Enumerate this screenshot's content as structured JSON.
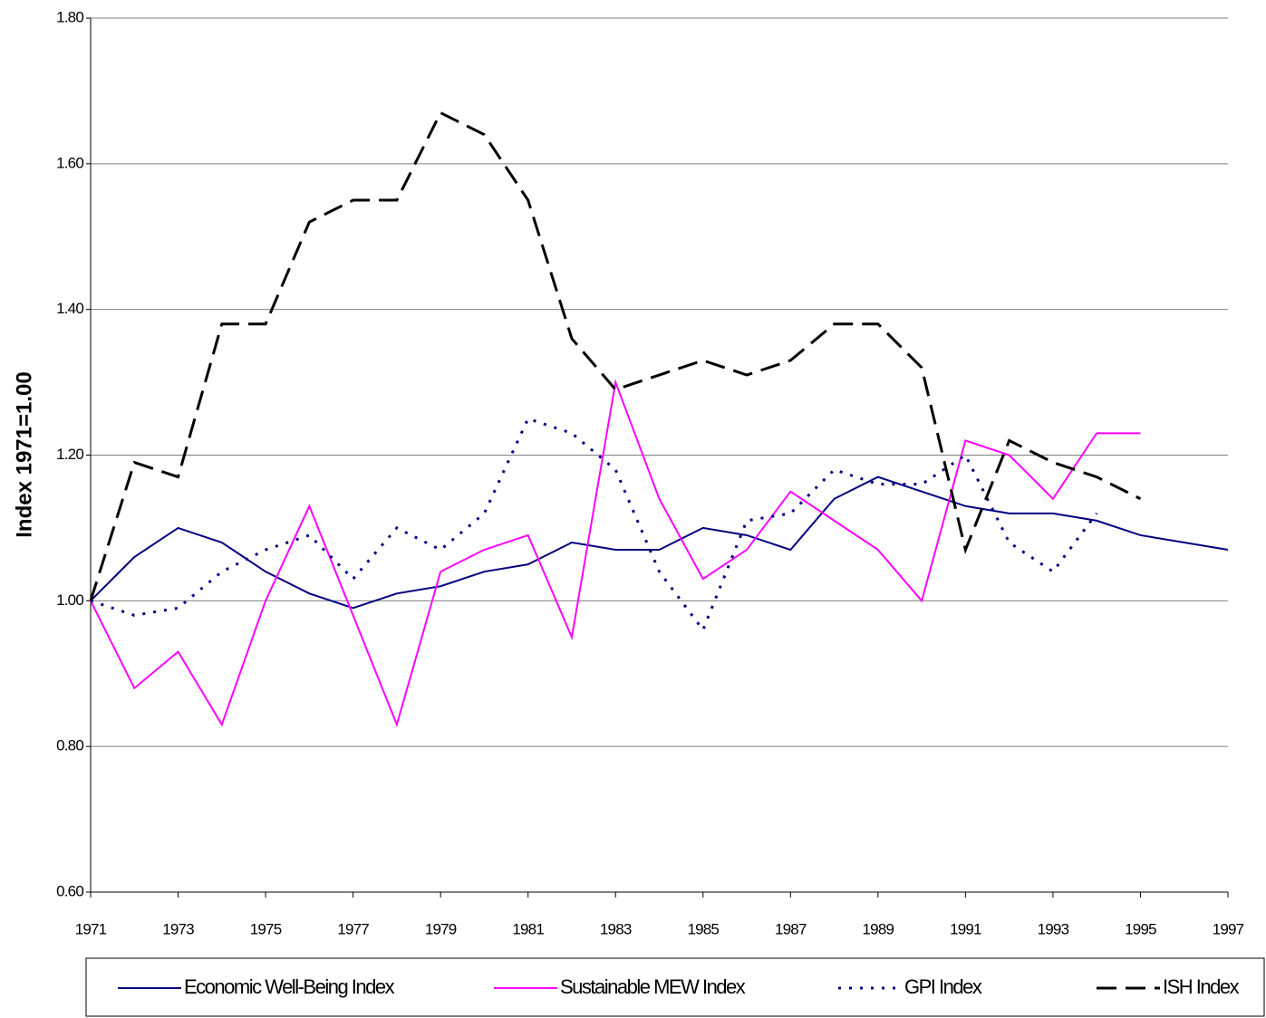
{
  "chart_data": {
    "type": "line",
    "y_label": "Index 1971=1.00",
    "x": [
      1971,
      1972,
      1973,
      1974,
      1975,
      1976,
      1977,
      1978,
      1979,
      1980,
      1981,
      1982,
      1983,
      1984,
      1985,
      1986,
      1987,
      1988,
      1989,
      1990,
      1991,
      1992,
      1993,
      1994,
      1995,
      1996,
      1997
    ],
    "xlim": [
      1971,
      1997
    ],
    "xticks": [
      1971,
      1973,
      1975,
      1977,
      1979,
      1981,
      1983,
      1985,
      1987,
      1989,
      1991,
      1993,
      1995,
      1997
    ],
    "ylim": [
      0.6,
      1.8
    ],
    "yticks": [
      {
        "value": 0.6,
        "label": "0.60"
      },
      {
        "value": 0.8,
        "label": "0.80"
      },
      {
        "value": 1.0,
        "label": "1.00"
      },
      {
        "value": 1.2,
        "label": "1.20"
      },
      {
        "value": 1.4,
        "label": "1.40"
      },
      {
        "value": 1.6,
        "label": "1.60"
      },
      {
        "value": 1.8,
        "label": "1.80"
      }
    ],
    "grid": true,
    "legend": "bottom",
    "series": [
      {
        "name": "Economic Well-Being Index",
        "color": "#000080",
        "dash": "solid",
        "values": [
          1.0,
          1.06,
          1.1,
          1.08,
          1.04,
          1.01,
          0.99,
          1.01,
          1.02,
          1.04,
          1.05,
          1.08,
          1.07,
          1.07,
          1.1,
          1.09,
          1.07,
          1.14,
          1.17,
          1.15,
          1.13,
          1.12,
          1.12,
          1.11,
          1.09,
          1.08,
          1.07
        ]
      },
      {
        "name": "Sustainable MEW Index",
        "color": "#ff00ff",
        "dash": "solid",
        "values": [
          1.0,
          0.88,
          0.93,
          0.83,
          1.0,
          1.13,
          0.98,
          0.83,
          1.04,
          1.07,
          1.09,
          0.95,
          1.3,
          1.14,
          1.03,
          1.07,
          1.15,
          1.11,
          1.07,
          1.0,
          1.22,
          1.2,
          1.14,
          1.23,
          1.23,
          null,
          null
        ]
      },
      {
        "name": "GPI Index",
        "color": "#000080",
        "dash": "dotted",
        "values": [
          1.0,
          0.98,
          0.99,
          1.04,
          1.07,
          1.09,
          1.03,
          1.1,
          1.07,
          1.12,
          1.25,
          1.23,
          1.18,
          1.04,
          0.96,
          1.11,
          1.12,
          1.18,
          1.16,
          1.16,
          1.2,
          1.08,
          1.04,
          1.12,
          null,
          null,
          null
        ]
      },
      {
        "name": "ISH Index",
        "color": "#000000",
        "dash": "dashed",
        "values": [
          1.0,
          1.19,
          1.17,
          1.38,
          1.38,
          1.52,
          1.55,
          1.55,
          1.67,
          1.64,
          1.55,
          1.36,
          1.29,
          1.31,
          1.33,
          1.31,
          1.33,
          1.38,
          1.38,
          1.32,
          1.07,
          1.22,
          1.19,
          1.17,
          1.14,
          null,
          null
        ]
      }
    ]
  }
}
